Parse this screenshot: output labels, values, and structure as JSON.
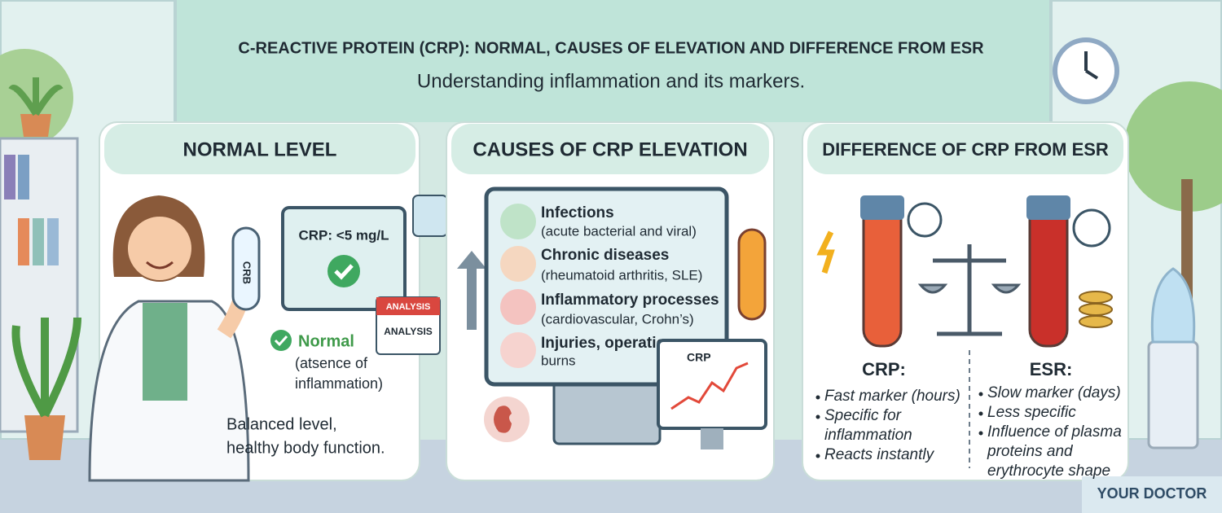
{
  "header": {
    "title": "C-REACTIVE PROTEIN (CRP): NORMAL, CAUSES OF ELEVATION AND DIFFERENCE FROM ESR",
    "subtitle": "Understanding inflammation and its markers."
  },
  "panels": [
    {
      "heading": "NORMAL LEVEL",
      "tube_label": "CRB",
      "screen_text": "CRP: <5 mg/L",
      "calendar_labels": [
        "ANALYSIS",
        "ANALYSIS"
      ],
      "status": "Normal",
      "status_note": [
        "(atsence of",
        "inflammation)"
      ],
      "description": [
        "Balanced level,",
        "healthy body function."
      ]
    },
    {
      "heading": "CAUSES OF CRP ELEVATION",
      "causes": [
        {
          "name": "Infections",
          "detail": "(acute bacterial and viral)"
        },
        {
          "name": "Chronic diseases",
          "detail": "(rheumatoid arthritis, SLE)"
        },
        {
          "name": "Inflammatory processes",
          "detail": "(cardiovascular, Crohn’s)"
        },
        {
          "name": "Injuries, operations",
          "detail": "burns"
        }
      ],
      "chart_label": "CRP"
    },
    {
      "heading": "DIFFERENCE OF CRP FROM ESR",
      "columns": [
        {
          "label": "CRP:",
          "points": [
            [
              "Fast marker (hours)"
            ],
            [
              "Specific for",
              "inflammation"
            ],
            [
              "Reacts instantly"
            ]
          ]
        },
        {
          "label": "ESR:",
          "points": [
            [
              "Slow marker (days)"
            ],
            [
              "Less specific"
            ],
            [
              "Influence of plasma",
              "proteins and",
              "erythrocyte shape"
            ]
          ]
        }
      ]
    }
  ],
  "footer": {
    "brand": "YOUR DOCTOR"
  }
}
